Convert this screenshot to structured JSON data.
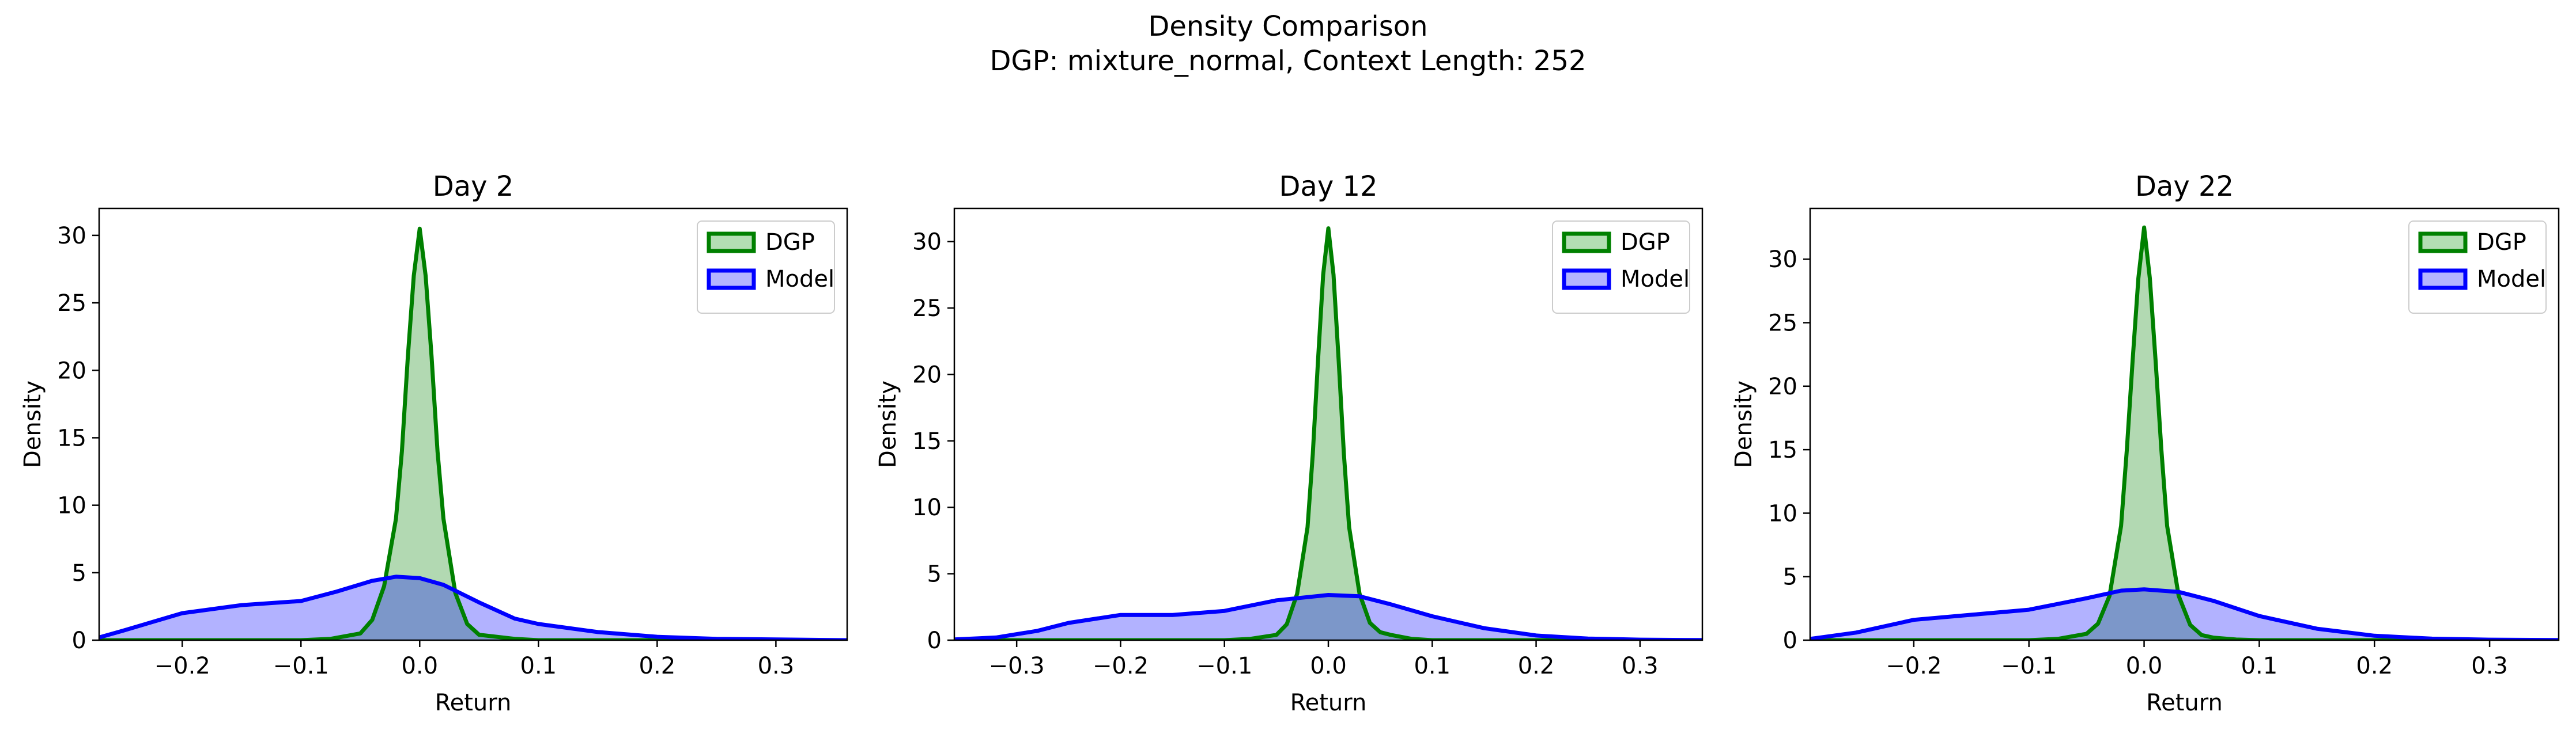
{
  "figure": {
    "title_line1": "Density Comparison",
    "title_line2": "DGP: mixture_normal, Context Length: 252"
  },
  "colors": {
    "dgp_line": "#008000",
    "dgp_fill": "#b3deb3",
    "model_line": "#0000ff",
    "model_fill": "#b3b3ff"
  },
  "chart_data": [
    {
      "type": "area",
      "title": "Day 2",
      "xlabel": "Return",
      "ylabel": "Density",
      "xlim": [
        -0.27,
        0.36
      ],
      "ylim": [
        0,
        32
      ],
      "xticks": [
        -0.2,
        -0.1,
        0.0,
        0.1,
        0.2,
        0.3
      ],
      "yticks": [
        0,
        5,
        10,
        15,
        20,
        25,
        30
      ],
      "legend": "top-right",
      "series": [
        {
          "name": "DGP",
          "x": [
            -0.27,
            -0.1,
            -0.075,
            -0.05,
            -0.04,
            -0.03,
            -0.02,
            -0.015,
            -0.01,
            -0.005,
            0.0,
            0.005,
            0.01,
            0.015,
            0.02,
            0.03,
            0.04,
            0.05,
            0.06,
            0.08,
            0.1,
            0.36
          ],
          "y": [
            0,
            0,
            0.1,
            0.5,
            1.5,
            4,
            9,
            14,
            21,
            27,
            30.5,
            27,
            21,
            14,
            9,
            3.5,
            1.2,
            0.4,
            0.3,
            0.1,
            0,
            0
          ]
        },
        {
          "name": "Model",
          "x": [
            -0.27,
            -0.25,
            -0.2,
            -0.15,
            -0.1,
            -0.07,
            -0.04,
            -0.02,
            0.0,
            0.02,
            0.05,
            0.08,
            0.1,
            0.15,
            0.2,
            0.25,
            0.3,
            0.36
          ],
          "y": [
            0.2,
            0.7,
            2.0,
            2.6,
            2.9,
            3.6,
            4.4,
            4.7,
            4.6,
            4.1,
            2.8,
            1.6,
            1.2,
            0.6,
            0.25,
            0.1,
            0.05,
            0
          ]
        }
      ]
    },
    {
      "type": "area",
      "title": "Day 12",
      "xlabel": "Return",
      "ylabel": "Density",
      "xlim": [
        -0.36,
        0.36
      ],
      "ylim": [
        0,
        32.5
      ],
      "xticks": [
        -0.3,
        -0.2,
        -0.1,
        0.0,
        0.1,
        0.2,
        0.3
      ],
      "yticks": [
        0,
        5,
        10,
        15,
        20,
        25,
        30
      ],
      "legend": "top-right",
      "series": [
        {
          "name": "DGP",
          "x": [
            -0.36,
            -0.1,
            -0.075,
            -0.05,
            -0.04,
            -0.03,
            -0.02,
            -0.015,
            -0.01,
            -0.005,
            0.0,
            0.005,
            0.01,
            0.015,
            0.02,
            0.03,
            0.04,
            0.05,
            0.06,
            0.08,
            0.1,
            0.36
          ],
          "y": [
            0,
            0,
            0.1,
            0.4,
            1.2,
            3.5,
            8.5,
            14,
            21,
            27.5,
            31,
            27.5,
            21,
            14,
            8.5,
            3.5,
            1.3,
            0.6,
            0.4,
            0.1,
            0,
            0
          ]
        },
        {
          "name": "Model",
          "x": [
            -0.36,
            -0.32,
            -0.28,
            -0.25,
            -0.2,
            -0.15,
            -0.1,
            -0.05,
            0.0,
            0.03,
            0.06,
            0.1,
            0.15,
            0.2,
            0.25,
            0.3,
            0.36
          ],
          "y": [
            0.05,
            0.2,
            0.7,
            1.3,
            1.9,
            1.9,
            2.2,
            3.0,
            3.4,
            3.3,
            2.7,
            1.8,
            0.9,
            0.35,
            0.12,
            0.04,
            0.01
          ]
        }
      ]
    },
    {
      "type": "area",
      "title": "Day 22",
      "xlabel": "Return",
      "ylabel": "Density",
      "xlim": [
        -0.29,
        0.36
      ],
      "ylim": [
        0,
        34
      ],
      "xticks": [
        -0.2,
        -0.1,
        0.0,
        0.1,
        0.2,
        0.3
      ],
      "yticks": [
        0,
        5,
        10,
        15,
        20,
        25,
        30
      ],
      "legend": "top-right",
      "series": [
        {
          "name": "DGP",
          "x": [
            -0.29,
            -0.1,
            -0.075,
            -0.05,
            -0.04,
            -0.03,
            -0.02,
            -0.015,
            -0.01,
            -0.005,
            0.0,
            0.005,
            0.01,
            0.015,
            0.02,
            0.03,
            0.04,
            0.05,
            0.06,
            0.08,
            0.1,
            0.36
          ],
          "y": [
            0,
            0,
            0.1,
            0.5,
            1.3,
            3.5,
            9,
            15,
            22,
            28.5,
            32.5,
            28.5,
            22,
            15,
            9,
            3.5,
            1.2,
            0.4,
            0.2,
            0.05,
            0,
            0
          ]
        },
        {
          "name": "Model",
          "x": [
            -0.29,
            -0.25,
            -0.2,
            -0.15,
            -0.1,
            -0.05,
            -0.02,
            0.0,
            0.03,
            0.06,
            0.1,
            0.15,
            0.2,
            0.25,
            0.3,
            0.36
          ],
          "y": [
            0.1,
            0.6,
            1.6,
            2.0,
            2.4,
            3.3,
            3.9,
            4.0,
            3.8,
            3.1,
            1.9,
            0.9,
            0.35,
            0.12,
            0.04,
            0.01
          ]
        }
      ]
    }
  ]
}
